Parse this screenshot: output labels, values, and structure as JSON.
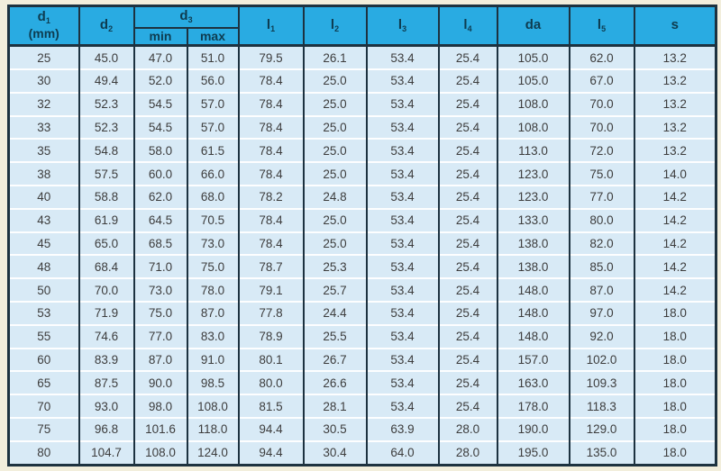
{
  "page": {
    "background_color": "#f2eedc"
  },
  "table": {
    "colors": {
      "header_bg": "#29abe2",
      "header_text": "#0e3c50",
      "border_dark": "#1d3240",
      "row_bg": "#d8eaf6",
      "row_separator": "#fdfeff",
      "body_text": "#3d3d3d",
      "page_bg": "#f2eedc"
    },
    "header": {
      "d1": {
        "base": "d",
        "sub": "1",
        "unit": "(mm)"
      },
      "d2": {
        "base": "d",
        "sub": "2"
      },
      "d3": {
        "base": "d",
        "sub": "3"
      },
      "d3_min": "min",
      "d3_max": "max",
      "l1": {
        "base": "l",
        "sub": "1"
      },
      "l2": {
        "base": "l",
        "sub": "2"
      },
      "l3": {
        "base": "l",
        "sub": "3"
      },
      "l4": {
        "base": "l",
        "sub": "4"
      },
      "da": {
        "base": "da",
        "sub": ""
      },
      "l5": {
        "base": "l",
        "sub": "5"
      },
      "s": {
        "base": "s",
        "sub": ""
      }
    },
    "rows": [
      [
        "25",
        "45.0",
        "47.0",
        "51.0",
        "79.5",
        "26.1",
        "53.4",
        "25.4",
        "105.0",
        "62.0",
        "13.2"
      ],
      [
        "30",
        "49.4",
        "52.0",
        "56.0",
        "78.4",
        "25.0",
        "53.4",
        "25.4",
        "105.0",
        "67.0",
        "13.2"
      ],
      [
        "32",
        "52.3",
        "54.5",
        "57.0",
        "78.4",
        "25.0",
        "53.4",
        "25.4",
        "108.0",
        "70.0",
        "13.2"
      ],
      [
        "33",
        "52.3",
        "54.5",
        "57.0",
        "78.4",
        "25.0",
        "53.4",
        "25.4",
        "108.0",
        "70.0",
        "13.2"
      ],
      [
        "35",
        "54.8",
        "58.0",
        "61.5",
        "78.4",
        "25.0",
        "53.4",
        "25.4",
        "113.0",
        "72.0",
        "13.2"
      ],
      [
        "38",
        "57.5",
        "60.0",
        "66.0",
        "78.4",
        "25.0",
        "53.4",
        "25.4",
        "123.0",
        "75.0",
        "14.0"
      ],
      [
        "40",
        "58.8",
        "62.0",
        "68.0",
        "78.2",
        "24.8",
        "53.4",
        "25.4",
        "123.0",
        "77.0",
        "14.2"
      ],
      [
        "43",
        "61.9",
        "64.5",
        "70.5",
        "78.4",
        "25.0",
        "53.4",
        "25.4",
        "133.0",
        "80.0",
        "14.2"
      ],
      [
        "45",
        "65.0",
        "68.5",
        "73.0",
        "78.4",
        "25.0",
        "53.4",
        "25.4",
        "138.0",
        "82.0",
        "14.2"
      ],
      [
        "48",
        "68.4",
        "71.0",
        "75.0",
        "78.7",
        "25.3",
        "53.4",
        "25.4",
        "138.0",
        "85.0",
        "14.2"
      ],
      [
        "50",
        "70.0",
        "73.0",
        "78.0",
        "79.1",
        "25.7",
        "53.4",
        "25.4",
        "148.0",
        "87.0",
        "14.2"
      ],
      [
        "53",
        "71.9",
        "75.0",
        "87.0",
        "77.8",
        "24.4",
        "53.4",
        "25.4",
        "148.0",
        "97.0",
        "18.0"
      ],
      [
        "55",
        "74.6",
        "77.0",
        "83.0",
        "78.9",
        "25.5",
        "53.4",
        "25.4",
        "148.0",
        "92.0",
        "18.0"
      ],
      [
        "60",
        "83.9",
        "87.0",
        "91.0",
        "80.1",
        "26.7",
        "53.4",
        "25.4",
        "157.0",
        "102.0",
        "18.0"
      ],
      [
        "65",
        "87.5",
        "90.0",
        "98.5",
        "80.0",
        "26.6",
        "53.4",
        "25.4",
        "163.0",
        "109.3",
        "18.0"
      ],
      [
        "70",
        "93.0",
        "98.0",
        "108.0",
        "81.5",
        "28.1",
        "53.4",
        "25.4",
        "178.0",
        "118.3",
        "18.0"
      ],
      [
        "75",
        "96.8",
        "101.6",
        "118.0",
        "94.4",
        "30.5",
        "63.9",
        "28.0",
        "190.0",
        "129.0",
        "18.0"
      ],
      [
        "80",
        "104.7",
        "108.0",
        "124.0",
        "94.4",
        "30.4",
        "64.0",
        "28.0",
        "195.0",
        "135.0",
        "18.0"
      ]
    ]
  }
}
